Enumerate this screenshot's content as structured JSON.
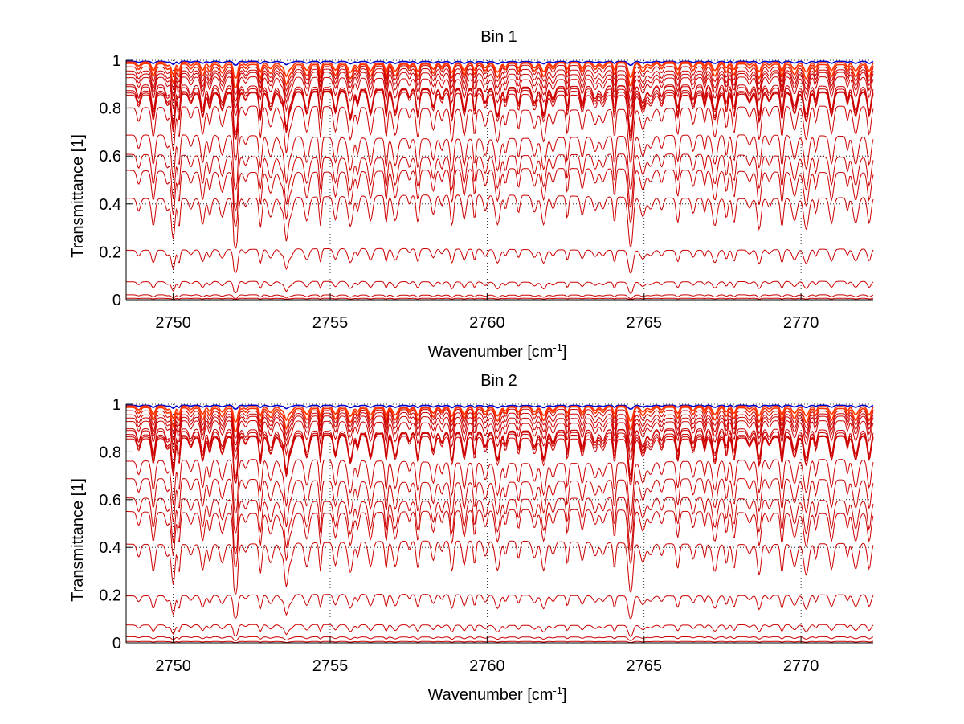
{
  "chart_data": [
    {
      "type": "line",
      "title": "Bin 1",
      "xlabel": "Wavenumber [cm",
      "xlabel_sup": "-1",
      "xlabel_end": "]",
      "ylabel": "Transmittance [1]",
      "xlim": [
        2748.5,
        2772.3
      ],
      "ylim": [
        0,
        1
      ],
      "grid": true,
      "xticks": [
        2750,
        2755,
        2760,
        2765,
        2770
      ],
      "xtick_labels": [
        "2750",
        "2755",
        "2760",
        "2765",
        "2770"
      ],
      "yticks": [
        0,
        0.2,
        0.4,
        0.6,
        0.8,
        1
      ],
      "ytick_labels": [
        "0",
        "0.2",
        "0.4",
        "0.6",
        "0.8",
        "1"
      ],
      "line_color": "#cc0000",
      "series": [
        {
          "baseline": 0.995,
          "depth": 0.01,
          "color": "#0000cc"
        },
        {
          "baseline": 0.99,
          "depth": 0.04,
          "color": "#ff3300"
        },
        {
          "baseline": 0.985,
          "depth": 0.06,
          "color": "#ff3300"
        },
        {
          "baseline": 0.975,
          "depth": 0.07
        },
        {
          "baseline": 0.96,
          "depth": 0.08
        },
        {
          "baseline": 0.945,
          "depth": 0.09
        },
        {
          "baseline": 0.925,
          "depth": 0.1
        },
        {
          "baseline": 0.89,
          "depth": 0.12
        },
        {
          "baseline": 0.885,
          "depth": 0.12
        },
        {
          "baseline": 0.875,
          "depth": 0.12
        },
        {
          "baseline": 0.87,
          "depth": 0.12
        },
        {
          "baseline": 0.86,
          "depth": 0.12
        },
        {
          "baseline": 0.8,
          "depth": 0.14
        },
        {
          "baseline": 0.68,
          "depth": 0.14
        },
        {
          "baseline": 0.6,
          "depth": 0.14
        },
        {
          "baseline": 0.54,
          "depth": 0.14
        },
        {
          "baseline": 0.43,
          "depth": 0.13
        },
        {
          "baseline": 0.21,
          "depth": 0.06
        },
        {
          "baseline": 0.075,
          "depth": 0.03
        },
        {
          "baseline": 0.02,
          "depth": 0.01
        },
        {
          "baseline": 0.006,
          "depth": 0.003
        }
      ]
    },
    {
      "type": "line",
      "title": "Bin 2",
      "xlabel": "Wavenumber [cm",
      "xlabel_sup": "-1",
      "xlabel_end": "]",
      "ylabel": "Transmittance [1]",
      "xlim": [
        2748.5,
        2772.3
      ],
      "ylim": [
        0,
        1
      ],
      "grid": true,
      "xticks": [
        2750,
        2755,
        2760,
        2765,
        2770
      ],
      "xtick_labels": [
        "2750",
        "2755",
        "2760",
        "2765",
        "2770"
      ],
      "yticks": [
        0,
        0.2,
        0.4,
        0.6,
        0.8,
        1
      ],
      "ytick_labels": [
        "0",
        "0.2",
        "0.4",
        "0.6",
        "0.8",
        "1"
      ],
      "line_color": "#cc0000",
      "series": [
        {
          "baseline": 0.995,
          "depth": 0.01,
          "color": "#0000cc"
        },
        {
          "baseline": 0.99,
          "depth": 0.04,
          "color": "#ff3300"
        },
        {
          "baseline": 0.985,
          "depth": 0.06,
          "color": "#ff3300"
        },
        {
          "baseline": 0.975,
          "depth": 0.07
        },
        {
          "baseline": 0.96,
          "depth": 0.08
        },
        {
          "baseline": 0.945,
          "depth": 0.09
        },
        {
          "baseline": 0.925,
          "depth": 0.1
        },
        {
          "baseline": 0.89,
          "depth": 0.12
        },
        {
          "baseline": 0.885,
          "depth": 0.12
        },
        {
          "baseline": 0.875,
          "depth": 0.12
        },
        {
          "baseline": 0.87,
          "depth": 0.12
        },
        {
          "baseline": 0.86,
          "depth": 0.12
        },
        {
          "baseline": 0.76,
          "depth": 0.14
        },
        {
          "baseline": 0.68,
          "depth": 0.14
        },
        {
          "baseline": 0.6,
          "depth": 0.14
        },
        {
          "baseline": 0.55,
          "depth": 0.14
        },
        {
          "baseline": 0.42,
          "depth": 0.13
        },
        {
          "baseline": 0.2,
          "depth": 0.06
        },
        {
          "baseline": 0.075,
          "depth": 0.03
        },
        {
          "baseline": 0.025,
          "depth": 0.01
        },
        {
          "baseline": 0.006,
          "depth": 0.003
        }
      ]
    }
  ]
}
